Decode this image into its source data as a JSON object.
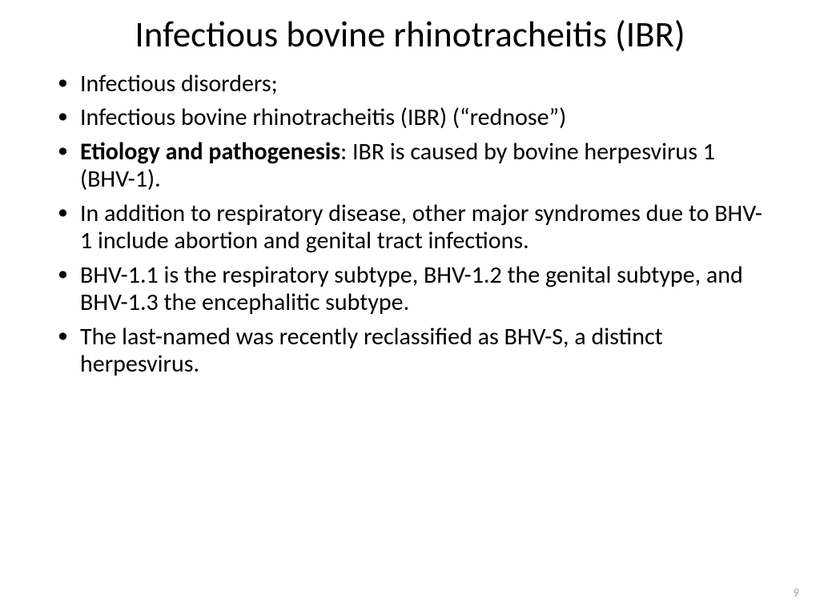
{
  "slide": {
    "title": "Infectious bovine rhinotracheitis (IBR)",
    "bullets": [
      {
        "plain": "Infectious disorders;"
      },
      {
        "plain": "Infectious bovine rhinotracheitis (IBR) (“rednose”)"
      },
      {
        "bold": "Etiology and pathogenesis",
        "rest": ": IBR is caused by bovine herpesvirus 1 (BHV-1)."
      },
      {
        "plain": "In addition to respiratory disease, other major syndromes due to BHV-1 include abortion and genital tract infections."
      },
      {
        "plain": "BHV-1.1 is the respiratory subtype, BHV-1.2 the genital subtype, and BHV-1.3 the encephalitic subtype."
      },
      {
        "plain": "The last-named was recently reclassified as BHV-S, a distinct herpesvirus."
      }
    ],
    "page_number": "9"
  },
  "style": {
    "background_color": "#ffffff",
    "text_color": "#000000",
    "page_number_color": "#a6a6a6",
    "title_fontsize": 45,
    "body_fontsize": 30,
    "font_family": "Calibri"
  }
}
